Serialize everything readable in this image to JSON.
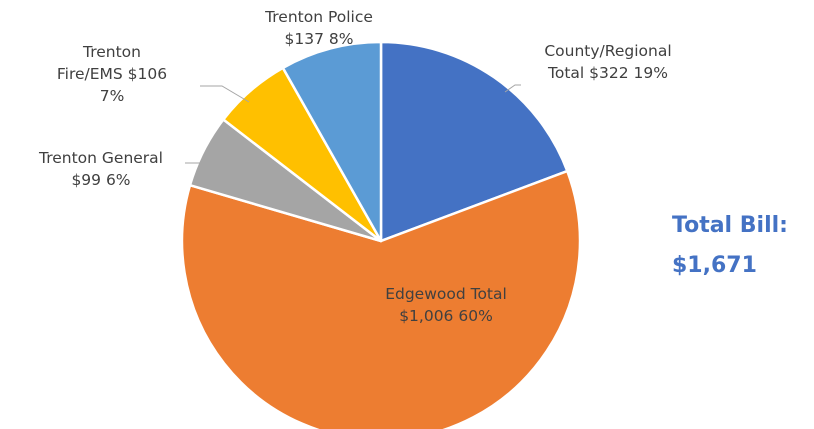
{
  "chart_data": {
    "type": "pie",
    "slices": [
      {
        "name": "County/Regional Total",
        "value": 322,
        "label_lines": [
          "County/Regional",
          "Total  $322  19%"
        ],
        "color": "#4472c4"
      },
      {
        "name": "Edgewood Total",
        "value": 1006,
        "label_lines": [
          "Edgewood Total",
          "$1,006  60%"
        ],
        "color": "#ed7d31"
      },
      {
        "name": "Trenton General",
        "value": 99,
        "label_lines": [
          "Trenton General",
          "$99  6%"
        ],
        "color": "#a5a5a5"
      },
      {
        "name": "Trenton Fire/EMS",
        "value": 106,
        "label_lines": [
          "Trenton",
          "Fire/EMS  $106",
          "7%"
        ],
        "color": "#ffc000"
      },
      {
        "name": "Trenton Police",
        "value": 137,
        "label_lines": [
          "Trenton Police",
          "$137  8%"
        ],
        "color": "#5b9bd5"
      }
    ]
  },
  "total_bill": {
    "label": "Total Bill:",
    "value": "$1,671",
    "color": "#4472c4"
  }
}
